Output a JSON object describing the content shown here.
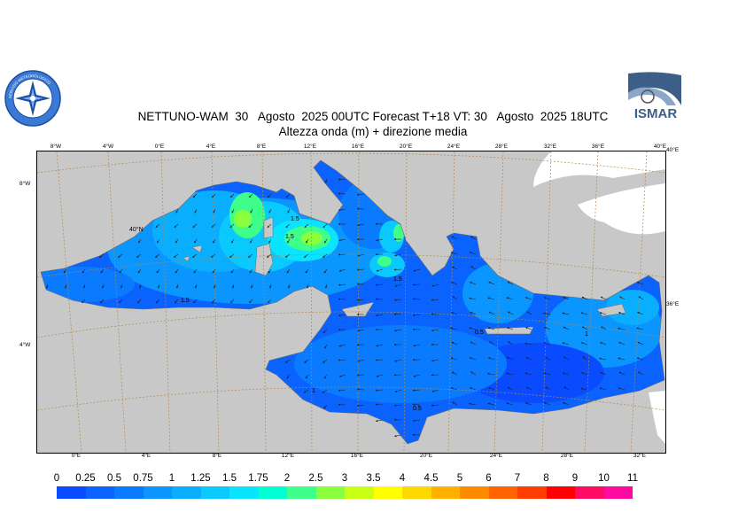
{
  "header": {
    "title_line1": "NETTUNO-WAM  30   Agosto  2025 00UTC Forecast T+18 VT: 30   Agosto  2025 18UTC",
    "title_line2": "Altezza onda (m) + direzione media"
  },
  "logos": {
    "left": {
      "name": "meteo-service-emblem",
      "ring_text": "SERVIZIO METEOROLOGICO"
    },
    "right": {
      "name": "ismar-logo",
      "text": "ISMAR"
    }
  },
  "map": {
    "top_lon_labels": [
      "8°W",
      "4°W",
      "0°E",
      "4°E",
      "8°E",
      "12°E",
      "16°E",
      "20°E",
      "24°E",
      "28°E",
      "32°E",
      "36°E",
      "40°E"
    ],
    "bottom_lon_labels": [
      "0°E",
      "4°E",
      "8°E",
      "12°E",
      "16°E",
      "20°E",
      "24°E",
      "28°E",
      "32°E"
    ],
    "left_lat_labels": [
      "8°W",
      "4°W"
    ],
    "right_lat_labels": [
      "40°E",
      "36°E"
    ],
    "interior_labels": [
      "40°N"
    ],
    "contour_labels": [
      "1.5",
      "1.5",
      "1.5",
      "1.5",
      "1",
      "0.5",
      "1",
      "0.5"
    ],
    "colors": {
      "land": "#c8c8c8",
      "snow": "#ffffff",
      "grid": "#b08a4a",
      "coast": "#6a6a6a"
    }
  },
  "legend": {
    "ticks": [
      "0",
      "0.25",
      "0.5",
      "0.75",
      "1",
      "1.25",
      "1.5",
      "1.75",
      "2",
      "2.5",
      "3",
      "3.5",
      "4",
      "4.5",
      "5",
      "6",
      "7",
      "8",
      "9",
      "10",
      "11"
    ],
    "colors": [
      "#0a4bff",
      "#0a62ff",
      "#0a7bff",
      "#0a95ff",
      "#0aaeff",
      "#0ac9ff",
      "#0ae4ff",
      "#00ffd2",
      "#3dff8a",
      "#8aff3d",
      "#c8ff14",
      "#ffff00",
      "#ffd800",
      "#ffb000",
      "#ff8c00",
      "#ff6400",
      "#ff3c00",
      "#ff0000",
      "#ff0a64",
      "#ff0aa0"
    ]
  }
}
